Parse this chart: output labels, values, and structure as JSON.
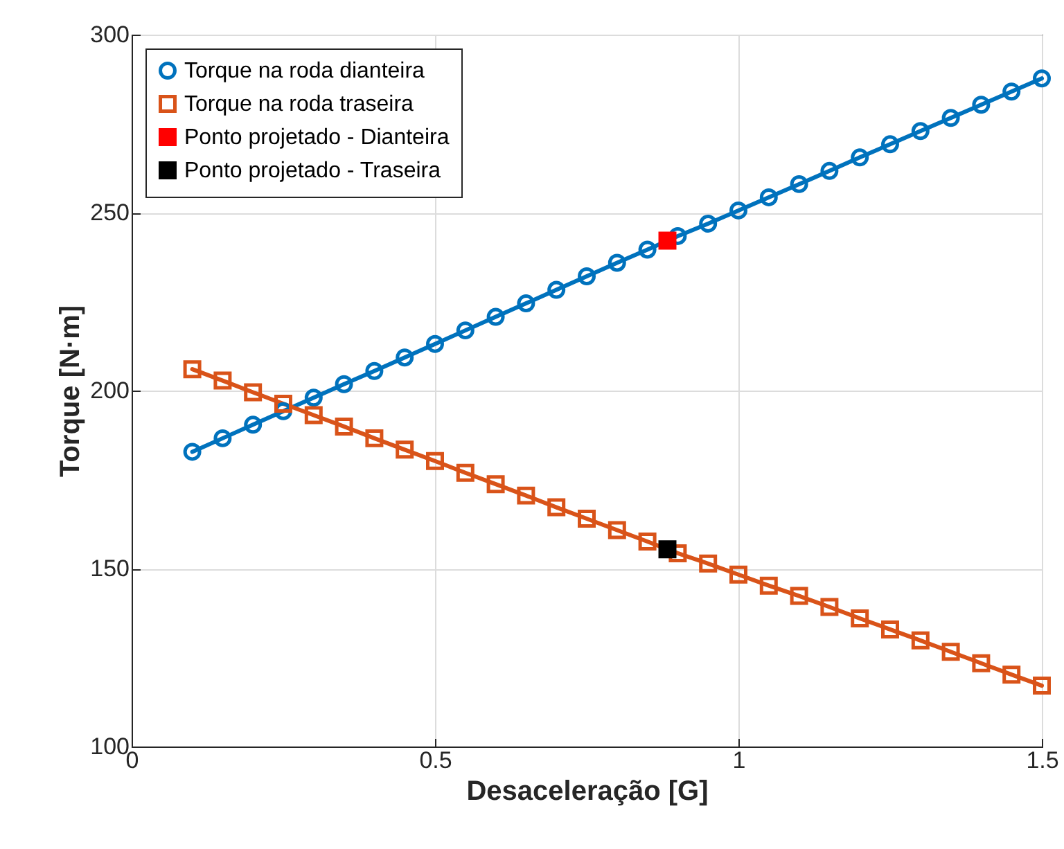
{
  "chart_data": {
    "type": "line",
    "xlabel": "Desaceleração [G]",
    "ylabel": "Torque [N·m]",
    "x": [
      0.1,
      0.15,
      0.2,
      0.25,
      0.3,
      0.35,
      0.4,
      0.45,
      0.5,
      0.55,
      0.6,
      0.65,
      0.7,
      0.75,
      0.8,
      0.85,
      0.9,
      0.95,
      1,
      1.05,
      1.1,
      1.15,
      1.2,
      1.25,
      1.3,
      1.35,
      1.4,
      1.45,
      1.5
    ],
    "series": [
      {
        "name": "Torque na roda dianteira",
        "color": "#0072bd",
        "marker": "circle",
        "line_style": "solid",
        "values": [
          182.8,
          186.6,
          190.4,
          194.2,
          198.0,
          201.8,
          205.5,
          209.3,
          213.1,
          216.9,
          220.7,
          224.5,
          228.3,
          232.1,
          235.9,
          239.6,
          243.4,
          246.9,
          250.6,
          254.3,
          258.0,
          261.7,
          265.5,
          269.2,
          272.9,
          276.6,
          280.3,
          284.0,
          287.7
        ]
      },
      {
        "name": "Torque na roda traseira",
        "color": "#d95319",
        "marker": "square",
        "line_style": "solid",
        "values": [
          206.0,
          202.8,
          199.5,
          196.3,
          193.1,
          189.9,
          186.6,
          183.4,
          180.2,
          176.9,
          173.7,
          170.5,
          167.2,
          164.0,
          160.8,
          157.6,
          154.3,
          151.4,
          148.3,
          145.2,
          142.3,
          139.2,
          136.0,
          132.9,
          129.8,
          126.6,
          123.4,
          120.2,
          117.1
        ]
      },
      {
        "name": "Ponto projetado - Dianteira",
        "color": "#ff0000",
        "type": "scatter",
        "marker": "square",
        "x": [
          0.883
        ],
        "values": [
          242.1
        ]
      },
      {
        "name": "Ponto projetado - Traseira",
        "color": "#000000",
        "type": "scatter",
        "marker": "square",
        "x": [
          0.883
        ],
        "values": [
          155.4
        ]
      }
    ],
    "xlim": [
      0,
      1.5
    ],
    "xticks": [
      0,
      0.5,
      1,
      1.5
    ],
    "ylim": [
      100,
      300
    ],
    "yticks": [
      100,
      150,
      200,
      250,
      300
    ],
    "grid": true,
    "legend": "top left"
  }
}
